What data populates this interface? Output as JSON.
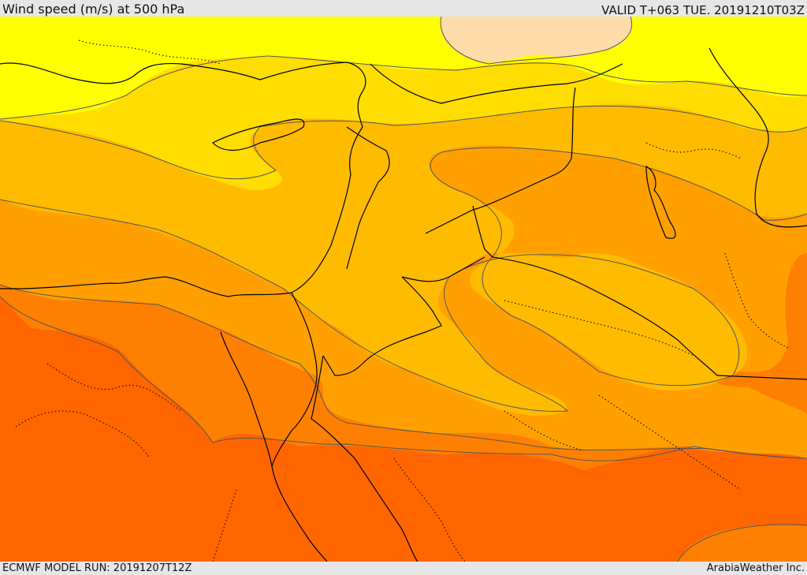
{
  "header": {
    "title": "Wind speed (m/s) at 500 hPa",
    "valid_time": "VALID T+063 TUE. 20191210T03Z"
  },
  "footer": {
    "model_run": "ECMWF MODEL RUN: 20191207T12Z",
    "credit": "ArabiaWeather Inc."
  },
  "map": {
    "variable": "wind speed",
    "units": "m/s",
    "pressure_level_hpa": 500,
    "colors": {
      "peach": "#fddcaa",
      "yellow": "#ffff00",
      "yellow_orange": "#ffdd00",
      "light_orange": "#ffbb00",
      "orange": "#ffa000",
      "dark_orange": "#ff8000",
      "red_orange": "#ff6600",
      "contour_line": "#555555",
      "border_line": "#000000"
    }
  }
}
